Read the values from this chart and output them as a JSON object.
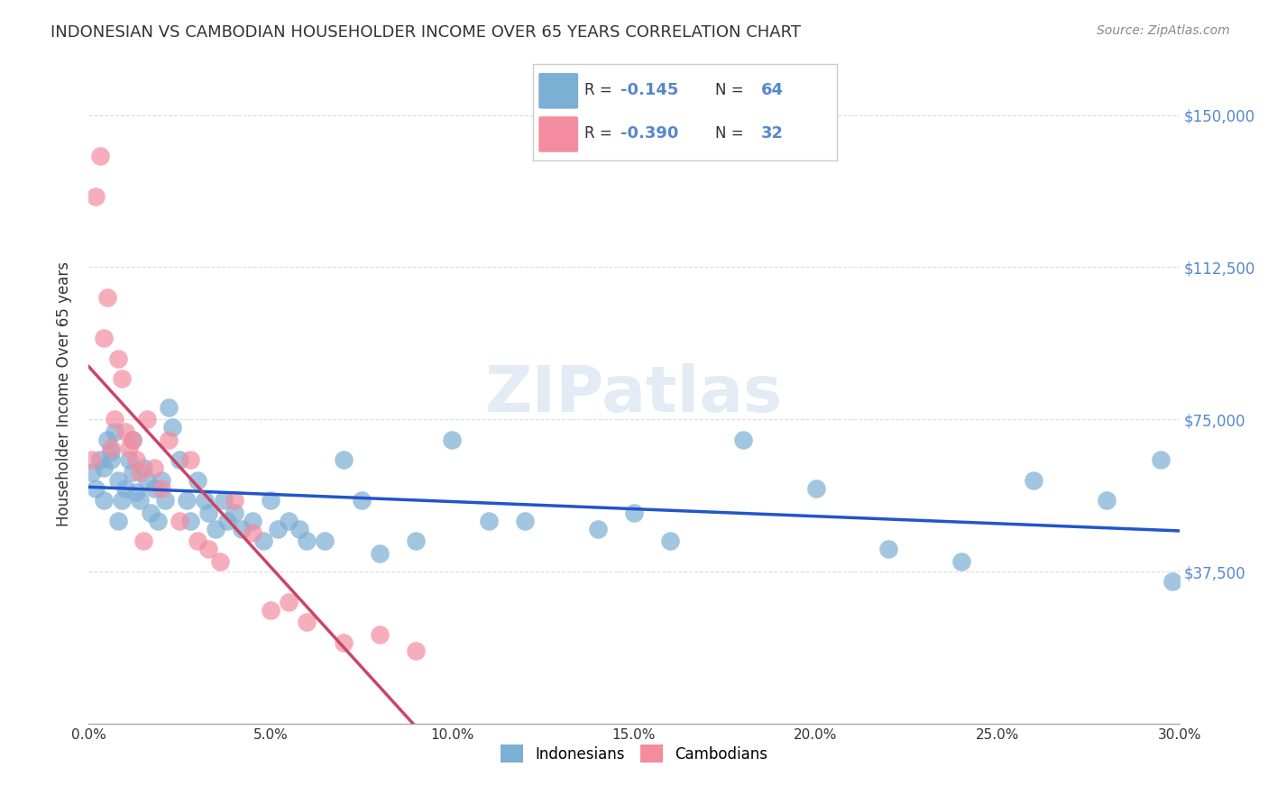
{
  "title": "INDONESIAN VS CAMBODIAN HOUSEHOLDER INCOME OVER 65 YEARS CORRELATION CHART",
  "source": "Source: ZipAtlas.com",
  "ylabel": "Householder Income Over 65 years",
  "y_ticks": [
    0,
    37500,
    75000,
    112500,
    150000
  ],
  "y_tick_labels": [
    "",
    "$37,500",
    "$75,000",
    "$112,500",
    "$150,000"
  ],
  "x_min": 0.0,
  "x_max": 0.3,
  "y_min": 0,
  "y_max": 162500,
  "indonesian_x": [
    0.001,
    0.002,
    0.003,
    0.004,
    0.005,
    0.006,
    0.007,
    0.008,
    0.009,
    0.01,
    0.011,
    0.012,
    0.013,
    0.014,
    0.015,
    0.016,
    0.017,
    0.018,
    0.019,
    0.02,
    0.021,
    0.022,
    0.023,
    0.025,
    0.027,
    0.028,
    0.03,
    0.032,
    0.033,
    0.035,
    0.037,
    0.038,
    0.04,
    0.042,
    0.045,
    0.048,
    0.05,
    0.052,
    0.055,
    0.058,
    0.06,
    0.065,
    0.07,
    0.075,
    0.08,
    0.09,
    0.1,
    0.11,
    0.12,
    0.14,
    0.15,
    0.16,
    0.18,
    0.2,
    0.22,
    0.24,
    0.26,
    0.28,
    0.295,
    0.298,
    0.004,
    0.006,
    0.008,
    0.012
  ],
  "indonesian_y": [
    62000,
    58000,
    65000,
    63000,
    70000,
    67000,
    72000,
    60000,
    55000,
    58000,
    65000,
    62000,
    57000,
    55000,
    63000,
    60000,
    52000,
    58000,
    50000,
    60000,
    55000,
    78000,
    73000,
    65000,
    55000,
    50000,
    60000,
    55000,
    52000,
    48000,
    55000,
    50000,
    52000,
    48000,
    50000,
    45000,
    55000,
    48000,
    50000,
    48000,
    45000,
    45000,
    65000,
    55000,
    42000,
    45000,
    70000,
    50000,
    50000,
    48000,
    52000,
    45000,
    70000,
    58000,
    43000,
    40000,
    60000,
    55000,
    65000,
    35000,
    55000,
    65000,
    50000,
    70000
  ],
  "cambodian_x": [
    0.001,
    0.002,
    0.003,
    0.004,
    0.005,
    0.006,
    0.007,
    0.008,
    0.009,
    0.01,
    0.011,
    0.012,
    0.013,
    0.014,
    0.015,
    0.016,
    0.018,
    0.02,
    0.022,
    0.025,
    0.028,
    0.03,
    0.033,
    0.036,
    0.04,
    0.045,
    0.05,
    0.055,
    0.06,
    0.07,
    0.08,
    0.09
  ],
  "cambodian_y": [
    65000,
    130000,
    140000,
    95000,
    105000,
    68000,
    75000,
    90000,
    85000,
    72000,
    68000,
    70000,
    65000,
    62000,
    45000,
    75000,
    63000,
    58000,
    70000,
    50000,
    65000,
    45000,
    43000,
    40000,
    55000,
    47000,
    28000,
    30000,
    25000,
    20000,
    22000,
    18000
  ],
  "dot_color_indonesian": "#7bafd4",
  "dot_color_cambodian": "#f48ca0",
  "line_color_indonesian": "#2255cc",
  "line_color_cambodian": "#cc4466",
  "line_color_cambodian_extend": "#cccccc",
  "watermark": "ZIPatlas",
  "background_color": "#ffffff",
  "grid_color": "#dddddd",
  "legend_r1": "-0.145",
  "legend_n1": "64",
  "legend_r2": "-0.390",
  "legend_n2": "32"
}
